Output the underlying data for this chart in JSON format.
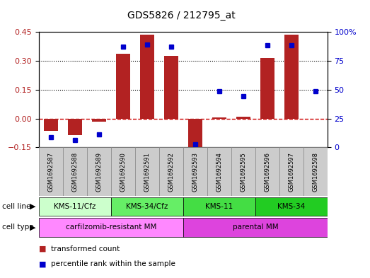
{
  "title": "GDS5826 / 212795_at",
  "samples": [
    "GSM1692587",
    "GSM1692588",
    "GSM1692589",
    "GSM1692590",
    "GSM1692591",
    "GSM1692592",
    "GSM1692593",
    "GSM1692594",
    "GSM1692595",
    "GSM1692596",
    "GSM1692597",
    "GSM1692598"
  ],
  "transformed_count": [
    -0.065,
    -0.085,
    -0.018,
    0.335,
    0.435,
    0.325,
    -0.175,
    0.005,
    0.01,
    0.315,
    0.435,
    0.0
  ],
  "percentile_rank": [
    8.5,
    6.5,
    11.5,
    87.0,
    89.0,
    87.5,
    2.5,
    48.5,
    44.5,
    88.5,
    88.5,
    48.5
  ],
  "bar_color": "#b22222",
  "dot_color": "#0000cc",
  "zero_line_color": "#cc0000",
  "left_yticks": [
    -0.15,
    0.0,
    0.15,
    0.3,
    0.45
  ],
  "right_yticks": [
    0,
    25,
    50,
    75,
    100
  ],
  "ylim": [
    -0.15,
    0.45
  ],
  "cell_line_groups": [
    {
      "label": "KMS-11/Cfz",
      "start": 0,
      "end": 3,
      "color": "#ccffcc"
    },
    {
      "label": "KMS-34/Cfz",
      "start": 3,
      "end": 6,
      "color": "#66ee66"
    },
    {
      "label": "KMS-11",
      "start": 6,
      "end": 9,
      "color": "#44dd44"
    },
    {
      "label": "KMS-34",
      "start": 9,
      "end": 12,
      "color": "#22cc22"
    }
  ],
  "cell_type_groups": [
    {
      "label": "carfilzomib-resistant MM",
      "start": 0,
      "end": 6,
      "color": "#ff88ff"
    },
    {
      "label": "parental MM",
      "start": 6,
      "end": 12,
      "color": "#dd44dd"
    }
  ],
  "sample_box_color": "#cccccc",
  "legend_items": [
    {
      "color": "#b22222",
      "label": "transformed count"
    },
    {
      "color": "#0000cc",
      "label": "percentile rank within the sample"
    }
  ]
}
